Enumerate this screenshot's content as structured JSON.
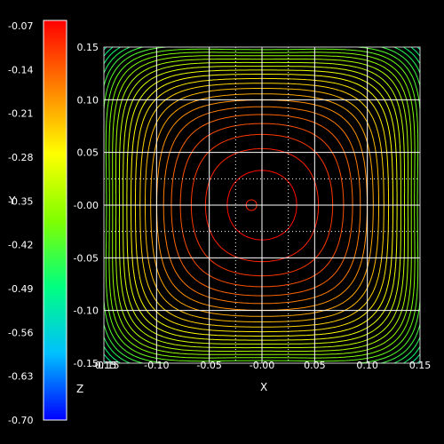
{
  "chart_data": {
    "type": "contour",
    "xlabel": "X",
    "ylabel": "Y",
    "zlabel": "Z",
    "xlim": [
      -0.15,
      0.15
    ],
    "ylim": [
      -0.15,
      0.15
    ],
    "x_ticks": [
      "-0.15",
      "-0.10",
      "-0.05",
      "-0.00",
      "0.05",
      "0.10",
      "0.15"
    ],
    "y_ticks": [
      "0.15",
      "0.10",
      "0.05",
      "-0.00",
      "-0.05",
      "-0.10",
      "-0.15"
    ],
    "x_tick_overlap_label": "-0.15",
    "colorbar_ticks": [
      "-0.07",
      "-0.14",
      "-0.21",
      "-0.28",
      "-0.35",
      "-0.42",
      "-0.49",
      "-0.56",
      "-0.63",
      "-0.70"
    ],
    "colorbar_range": [
      -0.7,
      -0.07
    ],
    "colorbar_colors": [
      "#ff0000",
      "#ff8000",
      "#ffff00",
      "#80ff00",
      "#00ff80",
      "#00c0ff",
      "#0000ff"
    ],
    "contour_levels": 40,
    "grid": true,
    "background": "#000000"
  }
}
